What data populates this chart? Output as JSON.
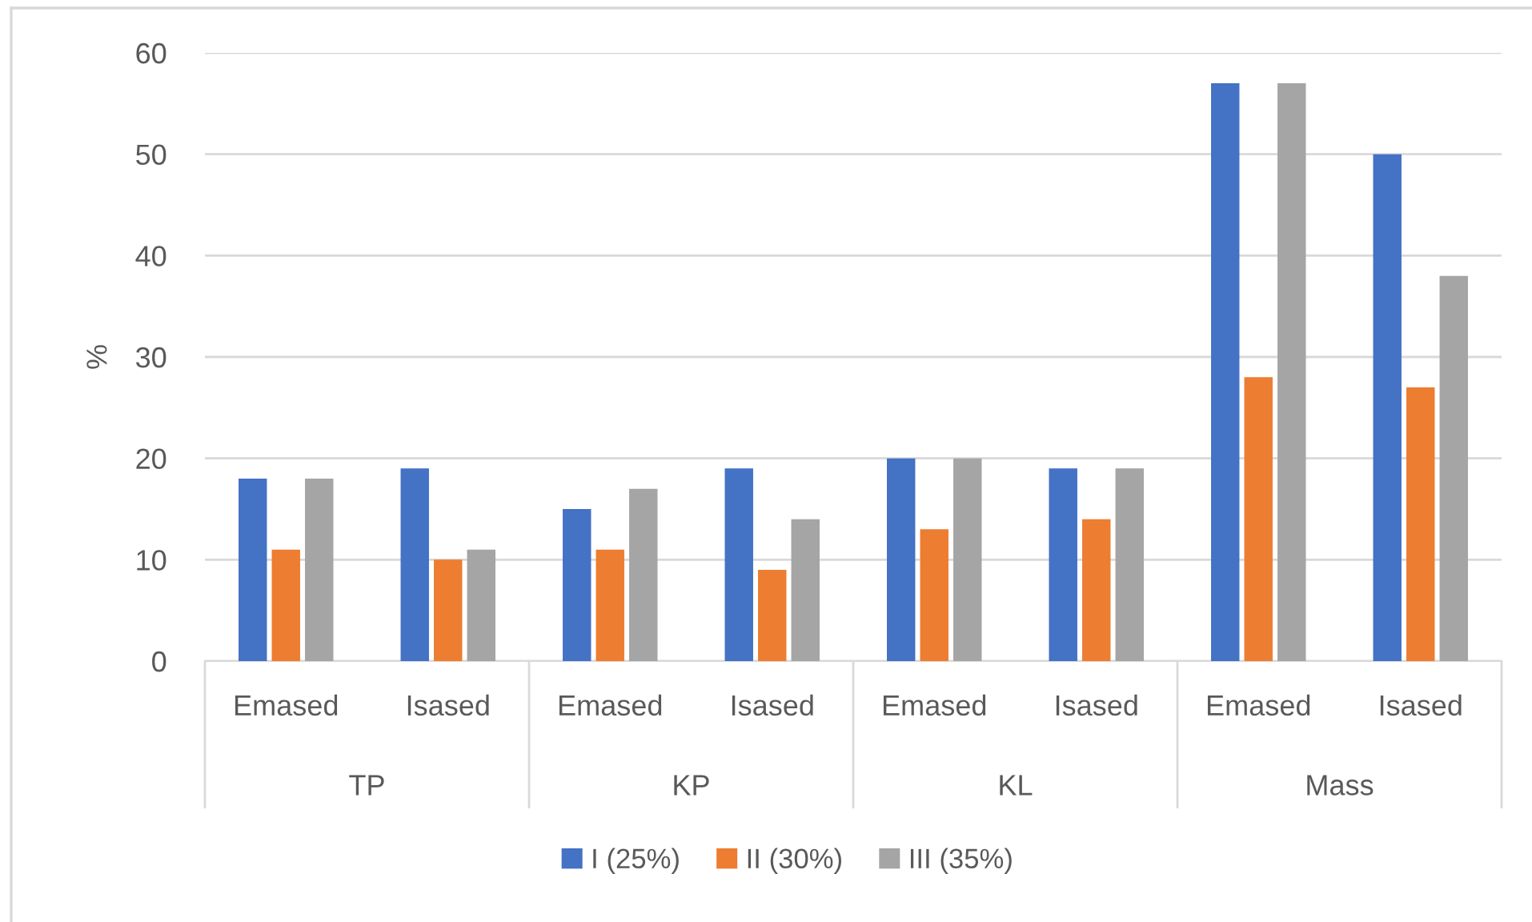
{
  "chart_data": {
    "type": "bar",
    "ylabel": "%",
    "categories": [
      "Emased",
      "Isased",
      "Emased",
      "Isased",
      "Emased",
      "Isased",
      "Emased",
      "Isased"
    ],
    "annotations": [
      "TP",
      "KP",
      "KL",
      "Mass"
    ],
    "series": [
      {
        "name": "I (25%)",
        "color": "#4472c4",
        "values": [
          18,
          19,
          15,
          19,
          20,
          19,
          57,
          50
        ]
      },
      {
        "name": "II (30%)",
        "color": "#ed7d31",
        "values": [
          11,
          10,
          11,
          9,
          13,
          14,
          28,
          27
        ]
      },
      {
        "name": "III (35%)",
        "color": "#a5a5a5",
        "values": [
          18,
          11,
          17,
          14,
          20,
          19,
          57,
          38
        ]
      }
    ],
    "ylim": [
      0,
      60
    ],
    "yticks": [
      0,
      10,
      20,
      30,
      40,
      50,
      60
    ],
    "grid": "y",
    "legend": "bottom"
  }
}
